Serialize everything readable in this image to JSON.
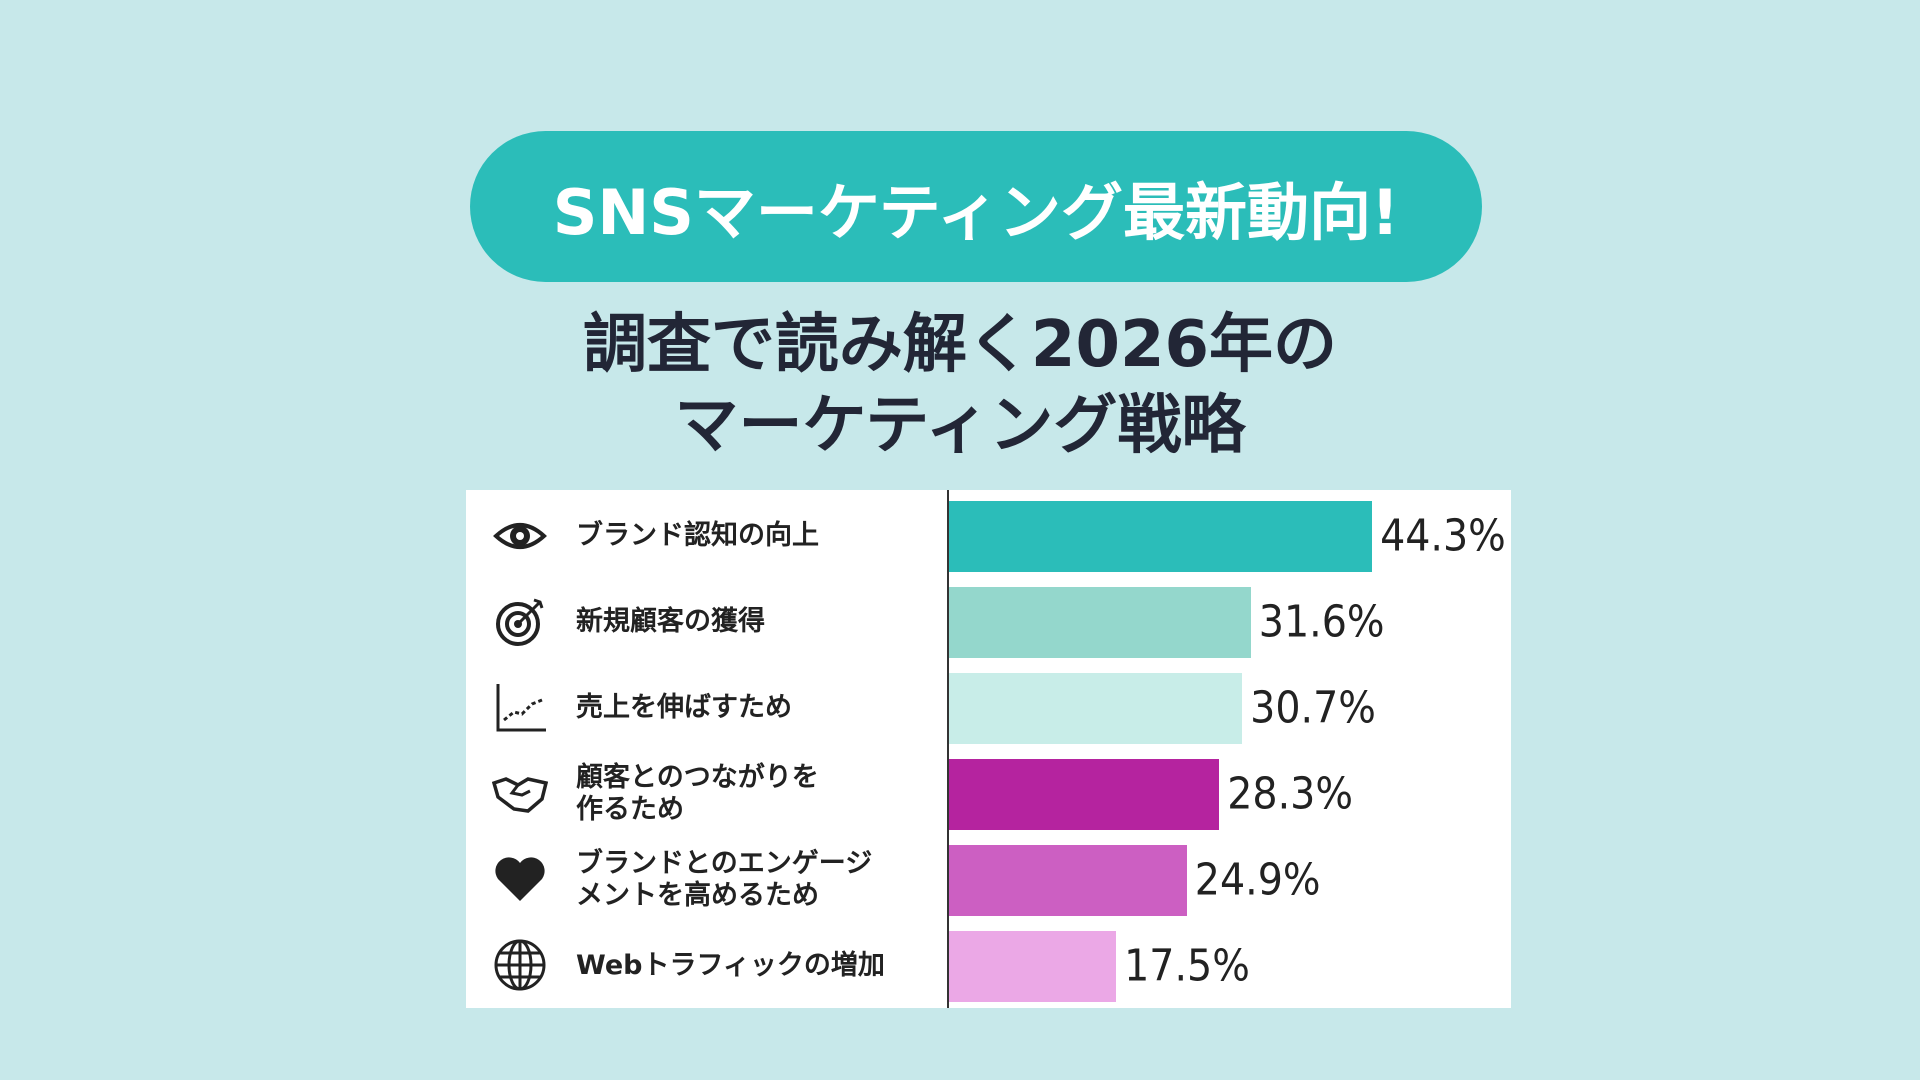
{
  "chart_data": {
    "type": "bar",
    "orientation": "horizontal",
    "title": "SNSマーケティング最新動向!",
    "subtitle": [
      "調査で読み解く2026年の",
      "マーケティング戦略"
    ],
    "categories": [
      "ブランド認知の向上",
      "新規顧客の獲得",
      "売上を伸ばすため",
      "顧客とのつながりを\n作るため",
      "ブランドとのエンゲージ\nメントを高めるため",
      "Webトラフィックの増加"
    ],
    "values": [
      44.3,
      31.6,
      30.7,
      28.3,
      24.9,
      17.5
    ],
    "value_labels": [
      "44.3%",
      "31.6%",
      "30.7%",
      "28.3%",
      "24.9%",
      "17.5%"
    ],
    "colors": [
      "#2bbdb9",
      "#94d7cc",
      "#c8ede8",
      "#b5239f",
      "#cc5fc2",
      "#eba8e6"
    ]
  }
}
